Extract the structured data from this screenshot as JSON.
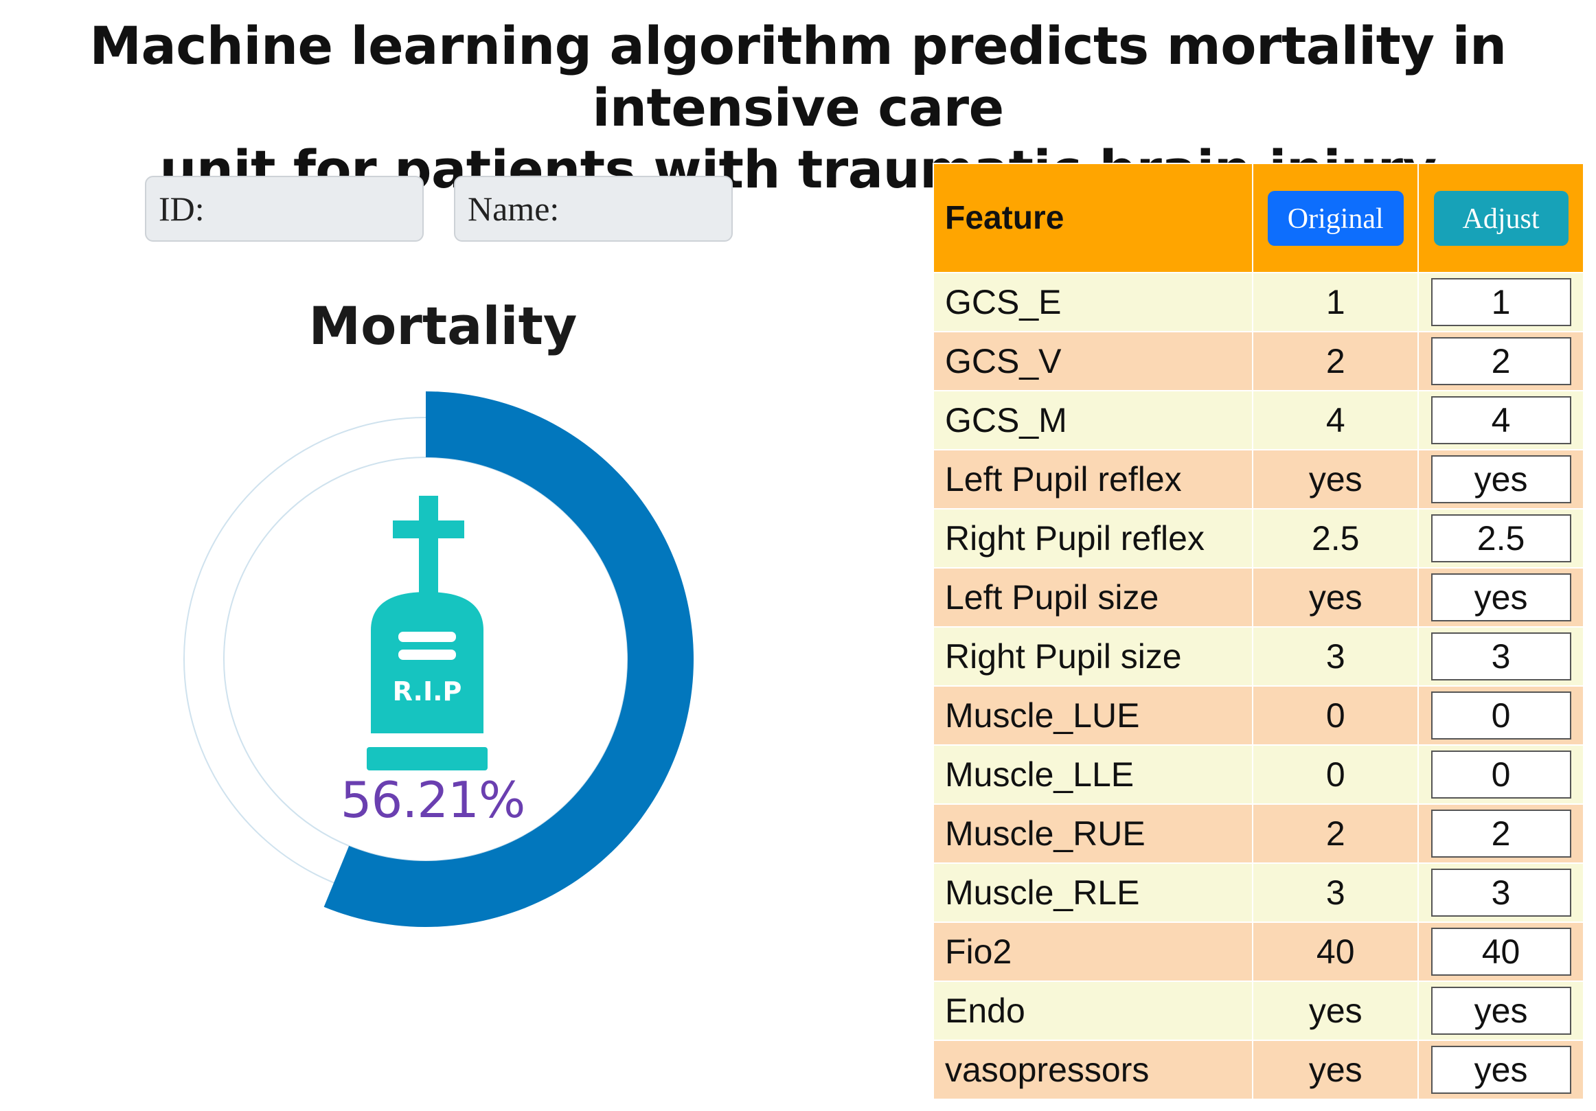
{
  "title": {
    "line1": "Machine learning algorithm predicts mortality in intensive care",
    "line2": "unit for patients with traumatic brain injury"
  },
  "patient": {
    "id_label": "ID:",
    "name_label": "Name:"
  },
  "mortality": {
    "heading": "Mortality",
    "percent_text": "56.21%",
    "probability": 0.5621,
    "tombstone_text": "R.I.P",
    "colors": {
      "arc": "#0277bd",
      "track": "#cfe2ee",
      "tombstone": "#16c4c0",
      "percent": "#6a3fb0"
    }
  },
  "table": {
    "header": {
      "feature": "Feature",
      "original_button": "Original",
      "adjust_button": "Adjust"
    },
    "colors": {
      "header_bg": "#ffa500",
      "row_odd": "#f8f8d8",
      "row_even": "#fbd8b4",
      "original_btn": "#0d6efd",
      "adjust_btn": "#17a2b8"
    },
    "rows": [
      {
        "feature": "GCS_E",
        "original": "1",
        "adjust": "1"
      },
      {
        "feature": "GCS_V",
        "original": "2",
        "adjust": "2"
      },
      {
        "feature": "GCS_M",
        "original": "4",
        "adjust": "4"
      },
      {
        "feature": "Left Pupil reflex",
        "original": "yes",
        "adjust": "yes"
      },
      {
        "feature": "Right Pupil reflex",
        "original": "2.5",
        "adjust": "2.5"
      },
      {
        "feature": "Left Pupil size",
        "original": "yes",
        "adjust": "yes"
      },
      {
        "feature": "Right Pupil size",
        "original": "3",
        "adjust": "3"
      },
      {
        "feature": "Muscle_LUE",
        "original": "0",
        "adjust": "0"
      },
      {
        "feature": "Muscle_LLE",
        "original": "0",
        "adjust": "0"
      },
      {
        "feature": "Muscle_RUE",
        "original": "2",
        "adjust": "2"
      },
      {
        "feature": "Muscle_RLE",
        "original": "3",
        "adjust": "3"
      },
      {
        "feature": "Fio2",
        "original": "40",
        "adjust": "40"
      },
      {
        "feature": "Endo",
        "original": "yes",
        "adjust": "yes"
      },
      {
        "feature": "vasopressors",
        "original": "yes",
        "adjust": "yes"
      }
    ]
  }
}
